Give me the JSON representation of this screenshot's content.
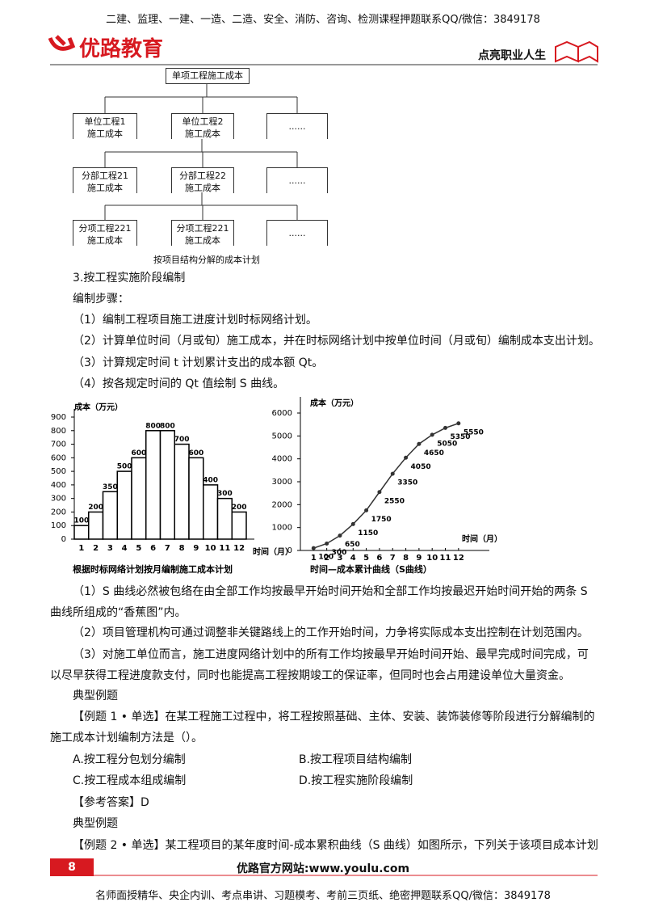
{
  "header": {
    "top_banner": "二建、监理、一建、一造、二造、安全、消防、咨询、检测课程押题联系QQ/微信：3849178",
    "logo": "优路教育",
    "slogan": "点亮职业人生"
  },
  "tree": {
    "root": "单项工程施工成本",
    "levels": [
      [
        [
          "单位工程1",
          "施工成本"
        ],
        [
          "单位工程2",
          "施工成本"
        ],
        [
          "......"
        ]
      ],
      [
        [
          "分部工程21",
          "施工成本"
        ],
        [
          "分部工程22",
          "施工成本"
        ],
        [
          "......"
        ]
      ],
      [
        [
          "分项工程221",
          "施工成本"
        ],
        [
          "分项工程221",
          "施工成本"
        ],
        [
          "......"
        ]
      ]
    ],
    "caption": "按项目结构分解的成本计划"
  },
  "body": {
    "section_title": "3.按工程实施阶段编制",
    "steps_label": "编制步骤：",
    "steps": [
      "（1）编制工程项目施工进度计划时标网络计划。",
      "（2）计算单位时间（月或旬）施工成本，并在时标网络计划中按单位时间（月或旬）编制成本支出计划。",
      "（3）计算规定时间 t 计划累计支出的成本额 Qt。",
      "（4）按各规定时间的 Qt 值绘制 S 曲线。"
    ],
    "notes": [
      "（1）S 曲线必然被包络在由全部工作均按最早开始时间开始和全部工作均按最迟开始时间开始的两条 S 曲线所组成的“香蕉图”内。",
      "（2）项目管理机构可通过调整非关键路线上的工作开始时间，力争将实际成本支出控制在计划范围内。",
      "（3）对施工单位而言，施工进度网络计划中的所有工作均按最早开始时间开始、最早完成时间完成，可以尽早获得工程进度款支付，同时也能提高工程按期竣工的保证率，但同时也会占用建设单位大量资金。"
    ],
    "example_label_1": "典型例题",
    "example1": {
      "question": "【例题 1 • 单选】在某工程施工过程中，将工程按照基础、主体、安装、装饰装修等阶段进行分解编制的施工成本计划编制方法是（）。",
      "options": [
        "A.按工程分包划分编制",
        "B.按工程项目结构编制",
        "C.按工程成本组成编制",
        "D.按工程实施阶段编制"
      ],
      "answer": "【参考答案】D"
    },
    "example_label_2": "典型例题",
    "example2": "【例题 2 • 单选】某工程项目的某年度时间-成本累积曲线（S 曲线）如图所示，下列关于该项目成本计划"
  },
  "chart_data": [
    {
      "type": "bar",
      "title": "根据时标网络计划按月编制施工成本计划",
      "y_label": "成本（万元）",
      "x_label": "时间（月）",
      "categories": [
        "1",
        "2",
        "3",
        "4",
        "5",
        "6",
        "7",
        "8",
        "9",
        "10",
        "11",
        "12"
      ],
      "values": [
        100,
        200,
        350,
        500,
        600,
        800,
        800,
        700,
        600,
        400,
        300,
        200
      ],
      "color": "#ffffff",
      "ylim": [
        0,
        900
      ],
      "yticks": [
        0,
        100,
        200,
        300,
        400,
        500,
        600,
        700,
        800,
        900
      ]
    },
    {
      "type": "line",
      "title": "时间—成本累计曲线（S曲线）",
      "y_label": "成本（万元）",
      "x_label": "时间（月）",
      "x": [
        1,
        2,
        3,
        4,
        5,
        6,
        7,
        8,
        9,
        10,
        11,
        12
      ],
      "values": [
        100,
        300,
        650,
        1150,
        1750,
        2550,
        3350,
        4050,
        4650,
        5050,
        5350,
        5550
      ],
      "color": "#333333",
      "xlim": [
        0,
        12.5
      ],
      "xticks": [
        1,
        2,
        3,
        4,
        5,
        6,
        7,
        8,
        9,
        10,
        11,
        12
      ],
      "ylim": [
        0,
        6000
      ],
      "yticks": [
        0,
        1000,
        2000,
        3000,
        4000,
        5000,
        6000
      ]
    }
  ],
  "footer": {
    "page_number": "8",
    "website": "优路官方网站:www.youlu.com",
    "bottom_banner": "名师面授精华、央企内训、考点串讲、习题模考、考前三页纸、绝密押题联系QQ/微信：3849178"
  }
}
